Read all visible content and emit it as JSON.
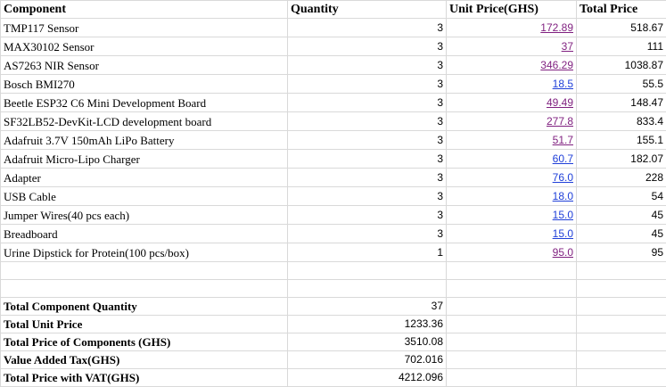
{
  "headers": {
    "component": "Component",
    "quantity": "Quantity",
    "unit_price": "Unit Price(GHS)",
    "total_price": "Total Price"
  },
  "rows": [
    {
      "component": "TMP117 Sensor",
      "quantity": "3",
      "unit_price": "172.89",
      "total_price": "518.67"
    },
    {
      "component": "MAX30102 Sensor",
      "quantity": "3",
      "unit_price": "37",
      "total_price": "111"
    },
    {
      "component": "AS7263 NIR Sensor",
      "quantity": "3",
      "unit_price": "346.29",
      "total_price": "1038.87"
    },
    {
      "component": "Bosch BMI270",
      "quantity": "3",
      "unit_price": "18.5",
      "total_price": "55.5"
    },
    {
      "component": "Beetle ESP32 C6 Mini Development Board",
      "quantity": "3",
      "unit_price": "49.49",
      "total_price": "148.47"
    },
    {
      "component": "SF32LB52-DevKit-LCD development board",
      "quantity": "3",
      "unit_price": "277.8",
      "total_price": "833.4"
    },
    {
      "component": "Adafruit 3.7V 150mAh LiPo Battery",
      "quantity": "3",
      "unit_price": "51.7 ",
      "total_price": "155.1"
    },
    {
      "component": "Adafruit Micro-Lipo Charger",
      "quantity": "3",
      "unit_price": "60.7 ",
      "total_price": "182.07"
    },
    {
      "component": "Adapter",
      "quantity": "3",
      "unit_price": "76.0 ",
      "total_price": "228"
    },
    {
      "component": "USB Cable",
      "quantity": "3",
      "unit_price": "18.0 ",
      "total_price": "54"
    },
    {
      "component": "Jumper Wires(40 pcs each)",
      "quantity": "3",
      "unit_price": "15.0 ",
      "total_price": "45"
    },
    {
      "component": "Breadboard",
      "quantity": "3",
      "unit_price": "15.0 ",
      "total_price": "45"
    },
    {
      "component": "Urine Dipstick for Protein(100 pcs/box)",
      "quantity": "1",
      "unit_price": "95.0 ",
      "total_price": "95"
    }
  ],
  "link_colors": {
    "visited": "#7f1f7f",
    "unvisited": "#1f3fd9"
  },
  "link_states": [
    "visited",
    "visited",
    "visited",
    "unvisited",
    "visited",
    "visited",
    "visited",
    "unvisited",
    "unvisited",
    "unvisited",
    "unvisited",
    "unvisited",
    "visited"
  ],
  "summary": [
    {
      "label": "Total Component Quantity",
      "value": "37"
    },
    {
      "label": "Total Unit Price",
      "value": "1233.36"
    },
    {
      "label": "Total Price of Components (GHS)",
      "value": "3510.08"
    },
    {
      "label": "Value Added Tax(GHS)",
      "value": "702.016"
    },
    {
      "label": "Total Price with VAT(GHS)",
      "value": "4212.096"
    }
  ]
}
